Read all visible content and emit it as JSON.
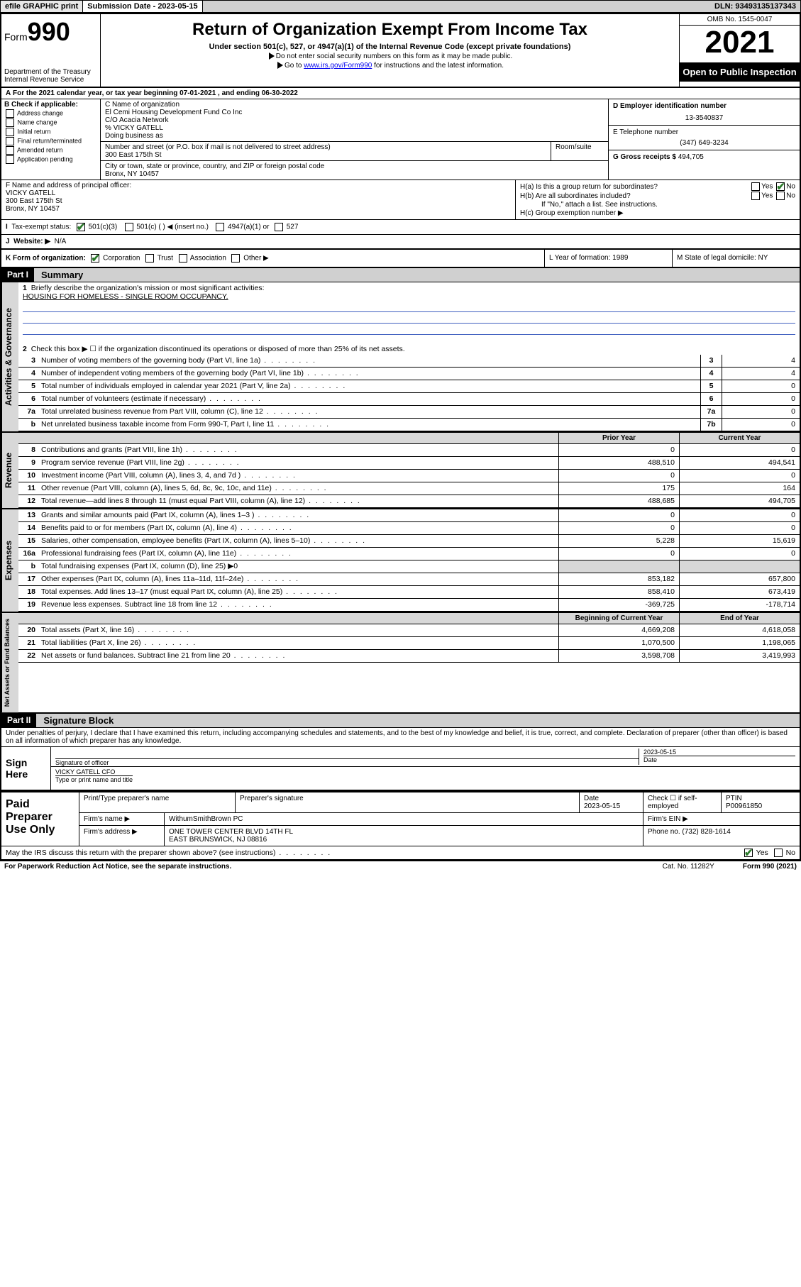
{
  "topbar": {
    "efile": "efile GRAPHIC print",
    "sub_label": "Submission Date - 2023-05-15",
    "dln": "DLN: 93493135137343"
  },
  "header": {
    "form_word": "Form",
    "form_num": "990",
    "dept": "Department of the Treasury",
    "irs": "Internal Revenue Service",
    "title": "Return of Organization Exempt From Income Tax",
    "sub": "Under section 501(c), 527, or 4947(a)(1) of the Internal Revenue Code (except private foundations)",
    "note1": "Do not enter social security numbers on this form as it may be made public.",
    "note2_pre": "Go to ",
    "note2_link": "www.irs.gov/Form990",
    "note2_post": " for instructions and the latest information.",
    "omb": "OMB No. 1545-0047",
    "year": "2021",
    "open": "Open to Public Inspection"
  },
  "rowA": "For the 2021 calendar year, or tax year beginning 07-01-2021   , and ending 06-30-2022",
  "boxB": {
    "title": "B Check if applicable:",
    "opts": [
      "Address change",
      "Name change",
      "Initial return",
      "Final return/terminated",
      "Amended return",
      "Application pending"
    ]
  },
  "boxC": {
    "label": "C Name of organization",
    "name": "El Cemi Housing Development Fund Co Inc",
    "co": "C/O Acacia Network",
    "pct": "% VICKY GATELL",
    "dba_label": "Doing business as",
    "street_label": "Number and street (or P.O. box if mail is not delivered to street address)",
    "street": "300 East 175th St",
    "room_label": "Room/suite",
    "city_label": "City or town, state or province, country, and ZIP or foreign postal code",
    "city": "Bronx, NY  10457"
  },
  "boxD": {
    "label": "D Employer identification number",
    "val": "13-3540837"
  },
  "boxE": {
    "label": "E Telephone number",
    "val": "(347) 649-3234"
  },
  "boxG": {
    "label": "G Gross receipts $",
    "val": "494,705"
  },
  "boxF": {
    "label": "F  Name and address of principal officer:",
    "name": "VICKY GATELL",
    "addr1": "300 East 175th St",
    "addr2": "Bronx, NY  10457"
  },
  "boxH": {
    "a": "H(a)  Is this a group return for subordinates?",
    "b": "H(b)  Are all subordinates included?",
    "note": "If \"No,\" attach a list. See instructions.",
    "c": "H(c)  Group exemption number ▶"
  },
  "rowI": {
    "label": "Tax-exempt status:",
    "o1": "501(c)(3)",
    "o2": "501(c) (  ) ◀ (insert no.)",
    "o3": "4947(a)(1) or",
    "o4": "527"
  },
  "rowJ": {
    "label": "Website: ▶",
    "val": "N/A"
  },
  "rowK": {
    "label": "K Form of organization:",
    "opts": [
      "Corporation",
      "Trust",
      "Association",
      "Other ▶"
    ],
    "L": "L Year of formation: 1989",
    "M": "M State of legal domicile: NY"
  },
  "part1": {
    "hdr": "Part I",
    "title": "Summary",
    "l1": "Briefly describe the organization's mission or most significant activities:",
    "mission": "HOUSING FOR HOMELESS - SINGLE ROOM OCCUPANCY.",
    "l2": "Check this box ▶ ☐  if the organization discontinued its operations or disposed of more than 25% of its net assets.",
    "lines_gov": [
      {
        "n": "3",
        "d": "Number of voting members of the governing body (Part VI, line 1a)",
        "box": "3",
        "v": "4"
      },
      {
        "n": "4",
        "d": "Number of independent voting members of the governing body (Part VI, line 1b)",
        "box": "4",
        "v": "4"
      },
      {
        "n": "5",
        "d": "Total number of individuals employed in calendar year 2021 (Part V, line 2a)",
        "box": "5",
        "v": "0"
      },
      {
        "n": "6",
        "d": "Total number of volunteers (estimate if necessary)",
        "box": "6",
        "v": "0"
      },
      {
        "n": "7a",
        "d": "Total unrelated business revenue from Part VIII, column (C), line 12",
        "box": "7a",
        "v": "0"
      },
      {
        "n": "b",
        "d": "Net unrelated business taxable income from Form 990-T, Part I, line 11",
        "box": "7b",
        "v": "0"
      }
    ],
    "col_prior": "Prior Year",
    "col_curr": "Current Year",
    "rev": [
      {
        "n": "8",
        "d": "Contributions and grants (Part VIII, line 1h)",
        "p": "0",
        "c": "0"
      },
      {
        "n": "9",
        "d": "Program service revenue (Part VIII, line 2g)",
        "p": "488,510",
        "c": "494,541"
      },
      {
        "n": "10",
        "d": "Investment income (Part VIII, column (A), lines 3, 4, and 7d )",
        "p": "0",
        "c": "0"
      },
      {
        "n": "11",
        "d": "Other revenue (Part VIII, column (A), lines 5, 6d, 8c, 9c, 10c, and 11e)",
        "p": "175",
        "c": "164"
      },
      {
        "n": "12",
        "d": "Total revenue—add lines 8 through 11 (must equal Part VIII, column (A), line 12)",
        "p": "488,685",
        "c": "494,705"
      }
    ],
    "exp": [
      {
        "n": "13",
        "d": "Grants and similar amounts paid (Part IX, column (A), lines 1–3 )",
        "p": "0",
        "c": "0"
      },
      {
        "n": "14",
        "d": "Benefits paid to or for members (Part IX, column (A), line 4)",
        "p": "0",
        "c": "0"
      },
      {
        "n": "15",
        "d": "Salaries, other compensation, employee benefits (Part IX, column (A), lines 5–10)",
        "p": "5,228",
        "c": "15,619"
      },
      {
        "n": "16a",
        "d": "Professional fundraising fees (Part IX, column (A), line 11e)",
        "p": "0",
        "c": "0"
      },
      {
        "n": "b",
        "d": "Total fundraising expenses (Part IX, column (D), line 25) ▶0",
        "p": "",
        "c": "",
        "noval": true
      },
      {
        "n": "17",
        "d": "Other expenses (Part IX, column (A), lines 11a–11d, 11f–24e)",
        "p": "853,182",
        "c": "657,800"
      },
      {
        "n": "18",
        "d": "Total expenses. Add lines 13–17 (must equal Part IX, column (A), line 25)",
        "p": "858,410",
        "c": "673,419"
      },
      {
        "n": "19",
        "d": "Revenue less expenses. Subtract line 18 from line 12",
        "p": "-369,725",
        "c": "-178,714"
      }
    ],
    "col_beg": "Beginning of Current Year",
    "col_end": "End of Year",
    "net": [
      {
        "n": "20",
        "d": "Total assets (Part X, line 16)",
        "p": "4,669,208",
        "c": "4,618,058"
      },
      {
        "n": "21",
        "d": "Total liabilities (Part X, line 26)",
        "p": "1,070,500",
        "c": "1,198,065"
      },
      {
        "n": "22",
        "d": "Net assets or fund balances. Subtract line 21 from line 20",
        "p": "3,598,708",
        "c": "3,419,993"
      }
    ],
    "side_gov": "Activities & Governance",
    "side_rev": "Revenue",
    "side_exp": "Expenses",
    "side_net": "Net Assets or Fund Balances"
  },
  "part2": {
    "hdr": "Part II",
    "title": "Signature Block",
    "decl": "Under penalties of perjury, I declare that I have examined this return, including accompanying schedules and statements, and to the best of my knowledge and belief, it is true, correct, and complete. Declaration of preparer (other than officer) is based on all information of which preparer has any knowledge.",
    "sign_here": "Sign Here",
    "sig_officer": "Signature of officer",
    "sig_date": "2023-05-15",
    "date_lbl": "Date",
    "officer": "VICKY GATELL  CFO",
    "officer_lbl": "Type or print name and title",
    "paid": "Paid Preparer Use Only",
    "pt_name_lbl": "Print/Type preparer's name",
    "pt_sig_lbl": "Preparer's signature",
    "pt_date_lbl": "Date",
    "pt_date": "2023-05-15",
    "pt_check": "Check ☐ if self-employed",
    "ptin_lbl": "PTIN",
    "ptin": "P00961850",
    "firm_name_lbl": "Firm's name   ▶",
    "firm_name": "WithumSmithBrown PC",
    "firm_ein_lbl": "Firm's EIN ▶",
    "firm_addr_lbl": "Firm's address ▶",
    "firm_addr1": "ONE TOWER CENTER BLVD 14TH FL",
    "firm_addr2": "EAST BRUNSWICK, NJ  08816",
    "phone_lbl": "Phone no.",
    "phone": "(732) 828-1614",
    "may": "May the IRS discuss this return with the preparer shown above? (see instructions)"
  },
  "footer": {
    "l": "For Paperwork Reduction Act Notice, see the separate instructions.",
    "m": "Cat. No. 11282Y",
    "r": "Form 990 (2021)"
  },
  "colors": {
    "link": "#0000ee",
    "check": "#2a7a2a",
    "gray": "#d0d0d0"
  }
}
